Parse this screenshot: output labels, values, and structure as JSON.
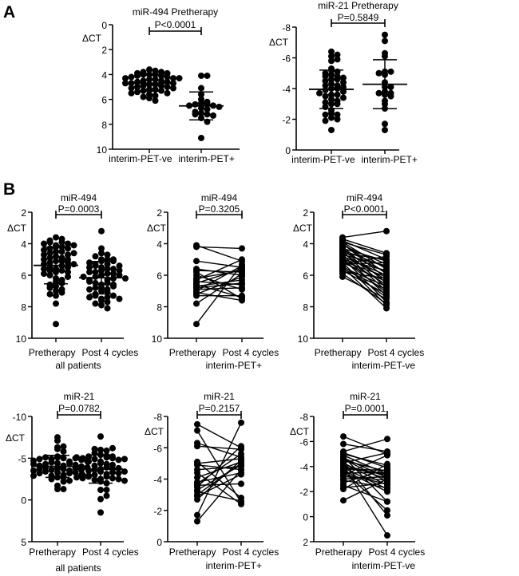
{
  "panel_letters": [
    "A",
    "B"
  ],
  "chart_data": [
    {
      "id": "a1",
      "panel": "A",
      "type": "scatter",
      "title": "miR-494 Pretherapy",
      "ylabel": "ΔCT",
      "ylim": [
        0,
        10
      ],
      "y_inverted": true,
      "yticks": [
        "0",
        "2",
        "4",
        "6",
        "8",
        "10"
      ],
      "pvalue": "P<0.0001",
      "categories": [
        "interim-PET-ve",
        "interim-PET+"
      ],
      "sublabel": "",
      "groups": [
        {
          "values": [
            3.6,
            3.7,
            3.8,
            3.8,
            3.9,
            3.9,
            4.0,
            4.0,
            4.0,
            4.1,
            4.1,
            4.2,
            4.2,
            4.3,
            4.3,
            4.3,
            4.4,
            4.4,
            4.5,
            4.5,
            4.6,
            4.6,
            4.7,
            4.7,
            4.7,
            4.8,
            4.8,
            4.9,
            4.9,
            5.0,
            5.0,
            5.1,
            5.1,
            5.2,
            5.2,
            5.3,
            5.3,
            5.4,
            5.5,
            5.5,
            5.6,
            5.7,
            5.8,
            5.9,
            6.1
          ]
        },
        {
          "values": [
            4.1,
            4.1,
            5.1,
            5.6,
            6.0,
            6.2,
            6.3,
            6.4,
            6.4,
            6.5,
            6.5,
            6.6,
            6.7,
            6.8,
            7.0,
            7.1,
            7.2,
            7.2,
            7.3,
            7.5,
            7.8,
            9.1
          ]
        }
      ]
    },
    {
      "id": "a2",
      "panel": "A",
      "type": "scatter",
      "title": "miR-21 Pretherapy",
      "ylabel": "ΔCT",
      "ylim": [
        -8,
        0
      ],
      "y_inverted": true,
      "yticks": [
        "-8",
        "-6",
        "-4",
        "-2",
        "0"
      ],
      "pvalue": "P=0.5849",
      "categories": [
        "interim-PET-ve",
        "interim-PET+"
      ],
      "sublabel": "",
      "groups": [
        {
          "values": [
            -6.4,
            -6.2,
            -6.1,
            -5.9,
            -5.8,
            -5.3,
            -5.2,
            -5.1,
            -5.0,
            -4.9,
            -4.8,
            -4.8,
            -4.7,
            -4.6,
            -4.6,
            -4.5,
            -4.4,
            -4.3,
            -4.2,
            -4.2,
            -4.1,
            -4.0,
            -4.0,
            -3.9,
            -3.8,
            -3.7,
            -3.6,
            -3.6,
            -3.5,
            -3.4,
            -3.3,
            -3.2,
            -3.1,
            -3.0,
            -3.0,
            -2.8,
            -2.6,
            -2.4,
            -2.3,
            -2.3,
            -2.1,
            -2.0,
            -1.9,
            -1.3
          ]
        },
        {
          "values": [
            -7.5,
            -7.1,
            -6.3,
            -6.1,
            -5.1,
            -5.1,
            -5.0,
            -4.9,
            -4.4,
            -4.1,
            -4.1,
            -3.8,
            -3.7,
            -3.7,
            -3.6,
            -3.5,
            -3.2,
            -3.0,
            -2.7,
            -1.7,
            -1.3
          ]
        }
      ]
    },
    {
      "id": "b1",
      "panel": "B",
      "type": "scatter",
      "title": "miR-494",
      "ylabel": "ΔCT",
      "ylim": [
        2,
        10
      ],
      "y_inverted": true,
      "yticks": [
        "2",
        "4",
        "6",
        "8",
        "10"
      ],
      "pvalue": "P=0.0003",
      "categories": [
        "Pretherapy",
        "Post 4 cycles"
      ],
      "sublabel": "all patients",
      "groups": [
        {
          "values": [
            4.1,
            4.2,
            5.1,
            5.6,
            5.8,
            6.2,
            6.3,
            6.4,
            6.5,
            6.6,
            6.7,
            6.9,
            7.0,
            7.1,
            7.2,
            7.3,
            7.8,
            9.1,
            6.0,
            5.7,
            6.8,
            3.6,
            3.7,
            3.8,
            3.9,
            3.9,
            4.0,
            4.0,
            4.1,
            4.2,
            4.3,
            4.3,
            4.4,
            4.5,
            4.5,
            4.6,
            4.7,
            4.7,
            4.8,
            4.9,
            4.9,
            5.0,
            5.0,
            5.1,
            5.2,
            5.2,
            5.3,
            5.4,
            5.5,
            5.5,
            5.6,
            5.7,
            5.8,
            5.9,
            6.1,
            5.3,
            4.6
          ]
        },
        {
          "values": [
            5.1,
            4.3,
            5.5,
            6.0,
            7.5,
            5.7,
            5.0,
            6.6,
            5.6,
            7.4,
            6.3,
            6.8,
            5.4,
            7.6,
            6.1,
            7.3,
            5.9,
            5.3,
            6.9,
            5.8,
            6.5,
            3.2,
            4.6,
            5.0,
            5.6,
            4.7,
            5.9,
            6.2,
            5.3,
            6.5,
            5.1,
            6.8,
            5.5,
            7.0,
            5.8,
            6.3,
            7.3,
            5.4,
            6.0,
            7.7,
            6.6,
            5.7,
            7.1,
            6.1,
            7.9,
            6.4,
            5.2,
            7.4,
            6.7,
            8.1,
            6.9,
            7.2,
            6.2,
            7.8,
            7.5,
            4.8,
            5.0
          ]
        }
      ]
    },
    {
      "id": "b2",
      "panel": "B",
      "type": "line",
      "title": "miR-494",
      "ylabel": "ΔCT",
      "ylim": [
        2,
        10
      ],
      "y_inverted": true,
      "yticks": [
        "2",
        "4",
        "6",
        "8",
        "10"
      ],
      "pvalue": "P=0.3205",
      "categories": [
        "Pretherapy",
        "Post 4 cycles"
      ],
      "sublabel": "interim-PET+",
      "pairs": [
        [
          4.1,
          5.1
        ],
        [
          4.2,
          4.3
        ],
        [
          5.1,
          5.5
        ],
        [
          5.6,
          6.0
        ],
        [
          5.8,
          7.5
        ],
        [
          6.2,
          5.7
        ],
        [
          6.3,
          5.0
        ],
        [
          6.4,
          6.6
        ],
        [
          6.5,
          5.6
        ],
        [
          6.6,
          7.4
        ],
        [
          6.7,
          6.3
        ],
        [
          6.9,
          6.8
        ],
        [
          7.0,
          5.4
        ],
        [
          7.1,
          7.6
        ],
        [
          7.2,
          6.1
        ],
        [
          7.3,
          7.3
        ],
        [
          7.8,
          5.9
        ],
        [
          9.1,
          5.3
        ],
        [
          6.0,
          6.9
        ],
        [
          5.7,
          5.8
        ],
        [
          6.8,
          6.5
        ]
      ]
    },
    {
      "id": "b3",
      "panel": "B",
      "type": "line",
      "title": "miR-494",
      "ylabel": "ΔCT",
      "ylim": [
        2,
        10
      ],
      "y_inverted": true,
      "yticks": [
        "2",
        "4",
        "6",
        "8",
        "10"
      ],
      "pvalue": "P<0.0001",
      "categories": [
        "Pretherapy",
        "Post 4 cycles"
      ],
      "sublabel": "interim-PET-ve",
      "pairs": [
        [
          3.6,
          3.2
        ],
        [
          3.7,
          4.6
        ],
        [
          3.8,
          5.0
        ],
        [
          3.9,
          5.6
        ],
        [
          3.9,
          4.7
        ],
        [
          4.0,
          5.9
        ],
        [
          4.0,
          6.2
        ],
        [
          4.1,
          5.3
        ],
        [
          4.2,
          6.5
        ],
        [
          4.3,
          5.1
        ],
        [
          4.3,
          6.8
        ],
        [
          4.4,
          5.5
        ],
        [
          4.5,
          7.0
        ],
        [
          4.5,
          5.8
        ],
        [
          4.6,
          6.3
        ],
        [
          4.7,
          7.3
        ],
        [
          4.7,
          5.4
        ],
        [
          4.8,
          6.0
        ],
        [
          4.9,
          7.7
        ],
        [
          4.9,
          6.6
        ],
        [
          5.0,
          5.7
        ],
        [
          5.0,
          7.1
        ],
        [
          5.1,
          6.1
        ],
        [
          5.2,
          7.9
        ],
        [
          5.2,
          6.4
        ],
        [
          5.3,
          5.2
        ],
        [
          5.4,
          7.4
        ],
        [
          5.5,
          6.7
        ],
        [
          5.5,
          8.1
        ],
        [
          5.6,
          6.9
        ],
        [
          5.7,
          7.2
        ],
        [
          5.8,
          6.2
        ],
        [
          5.9,
          7.8
        ],
        [
          6.1,
          7.5
        ],
        [
          5.3,
          4.8
        ],
        [
          4.6,
          5.0
        ]
      ]
    },
    {
      "id": "b4",
      "panel": "B",
      "type": "scatter",
      "title": "miR-21",
      "ylabel": "ΔCT",
      "ylim": [
        -10,
        5
      ],
      "y_inverted": true,
      "yticks": [
        "-10",
        "-5",
        "0",
        "5"
      ],
      "pvalue": "P=0.0782",
      "categories": [
        "Pretherapy",
        "Post 4 cycles"
      ],
      "sublabel": "all patients",
      "groups": [
        {
          "values": [
            -7.5,
            -7.1,
            -6.3,
            -6.1,
            -5.1,
            -5.0,
            -4.9,
            -4.4,
            -4.1,
            -3.8,
            -3.7,
            -3.6,
            -3.5,
            -3.3,
            -3.0,
            -2.9,
            -2.7,
            -1.7,
            -1.3,
            -3.2,
            -4.6,
            -6.4,
            -5.8,
            -5.2,
            -5.1,
            -5.0,
            -4.9,
            -4.8,
            -4.7,
            -4.6,
            -4.5,
            -4.4,
            -4.3,
            -4.2,
            -4.1,
            -4.0,
            -3.9,
            -3.8,
            -3.7,
            -3.6,
            -3.5,
            -3.4,
            -3.3,
            -3.2,
            -3.0,
            -2.9,
            -2.7,
            -2.5,
            -2.3,
            -2.2,
            -1.3,
            -4.3,
            -3.9
          ]
        },
        {
          "values": [
            -6.0,
            -2.5,
            -5.4,
            -5.9,
            -2.8,
            -5.3,
            -4.6,
            -2.4,
            -5.1,
            -4.4,
            -5.6,
            -3.7,
            -6.1,
            -4.9,
            -5.0,
            -4.3,
            -5.2,
            -7.6,
            -4.6,
            -2.6,
            -4.8,
            -5.0,
            -5.2,
            -6.2,
            -3.9,
            -4.1,
            -3.4,
            -1.2,
            -3.1,
            -2.8,
            -3.6,
            -0.1,
            -2.5,
            -3.0,
            1.5,
            -3.3,
            -2.2,
            -3.7,
            -2.0,
            -0.5,
            -3.5,
            -2.6,
            -4.9,
            -2.9,
            -3.2,
            -2.3,
            -3.8,
            -1.2,
            -2.7,
            -4.2,
            -3.0,
            -5.1,
            -3.4
          ]
        }
      ]
    },
    {
      "id": "b5",
      "panel": "B",
      "type": "line",
      "title": "miR-21",
      "ylabel": "ΔCT",
      "ylim": [
        -8,
        0
      ],
      "y_inverted": true,
      "yticks": [
        "-8",
        "-6",
        "-4",
        "-2",
        "0"
      ],
      "pvalue": "P=0.2157",
      "categories": [
        "Pretherapy",
        "Post 4 cycles"
      ],
      "sublabel": "interim-PET+",
      "pairs": [
        [
          -7.5,
          -6.0
        ],
        [
          -7.1,
          -2.5
        ],
        [
          -6.3,
          -5.4
        ],
        [
          -6.1,
          -5.9
        ],
        [
          -5.1,
          -2.8
        ],
        [
          -5.0,
          -5.3
        ],
        [
          -4.9,
          -4.6
        ],
        [
          -4.4,
          -2.4
        ],
        [
          -4.1,
          -5.1
        ],
        [
          -3.8,
          -4.4
        ],
        [
          -3.7,
          -5.6
        ],
        [
          -3.6,
          -3.7
        ],
        [
          -3.5,
          -6.1
        ],
        [
          -3.3,
          -4.9
        ],
        [
          -3.0,
          -5.0
        ],
        [
          -2.9,
          -4.3
        ],
        [
          -2.7,
          -5.2
        ],
        [
          -1.7,
          -7.6
        ],
        [
          -1.3,
          -4.6
        ],
        [
          -3.2,
          -2.6
        ],
        [
          -4.6,
          -4.8
        ]
      ]
    },
    {
      "id": "b6",
      "panel": "B",
      "type": "line",
      "title": "miR-21",
      "ylabel": "ΔCT",
      "ylim": [
        -8,
        2
      ],
      "y_inverted": true,
      "yticks": [
        "-8",
        "-6",
        "-4",
        "-2",
        "0",
        "2"
      ],
      "pvalue": "P=0.0001",
      "categories": [
        "Pretherapy",
        "Post 4 cycles"
      ],
      "sublabel": "interim-PET-ve",
      "pairs": [
        [
          -6.4,
          -5.0
        ],
        [
          -5.8,
          -5.2
        ],
        [
          -5.2,
          -6.2
        ],
        [
          -5.1,
          -3.9
        ],
        [
          -5.0,
          -4.1
        ],
        [
          -4.9,
          -3.4
        ],
        [
          -4.8,
          -1.2
        ],
        [
          -4.7,
          -3.1
        ],
        [
          -4.6,
          -2.8
        ],
        [
          -4.5,
          -3.6
        ],
        [
          -4.4,
          -0.1
        ],
        [
          -4.3,
          -2.5
        ],
        [
          -4.2,
          -3.0
        ],
        [
          -4.1,
          1.5
        ],
        [
          -4.0,
          -3.3
        ],
        [
          -3.9,
          -2.2
        ],
        [
          -3.8,
          -3.7
        ],
        [
          -3.7,
          -2.0
        ],
        [
          -3.6,
          -0.5
        ],
        [
          -3.5,
          -3.5
        ],
        [
          -3.4,
          -2.6
        ],
        [
          -3.3,
          -4.9
        ],
        [
          -3.2,
          -2.9
        ],
        [
          -3.0,
          -3.2
        ],
        [
          -2.9,
          -2.3
        ],
        [
          -2.7,
          -3.8
        ],
        [
          -2.5,
          -1.2
        ],
        [
          -2.3,
          -2.7
        ],
        [
          -2.2,
          -4.2
        ],
        [
          -1.3,
          -3.0
        ],
        [
          -4.3,
          -5.1
        ],
        [
          -3.9,
          -3.4
        ]
      ]
    }
  ]
}
